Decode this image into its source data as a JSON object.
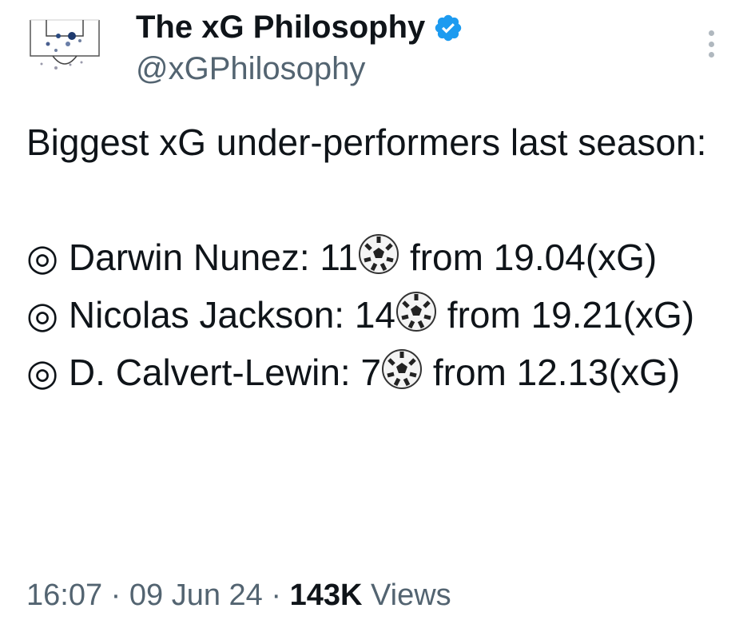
{
  "author": {
    "name": "The xG Philosophy",
    "handle": "@xGPhilosophy",
    "verified": true,
    "verified_color": "#1d9bf0"
  },
  "tweet": {
    "intro": "Biggest xG under-performers last season:",
    "bullet": "◎",
    "ball_icon": "soccer-ball-icon",
    "items": [
      {
        "player": "Darwin Nunez:",
        "goals": "11",
        "xg": "from 19.04(xG)"
      },
      {
        "player": "Nicolas Jackson:",
        "goals": "14",
        "xg": "from 19.21(xG)"
      },
      {
        "player": "D. Calvert-Lewin:",
        "goals": "7",
        "xg": "from 12.13(xG)"
      }
    ]
  },
  "footer": {
    "time": "16:07",
    "date": "09 Jun 24",
    "views_count": "143K",
    "views_label": "Views",
    "separator": "·"
  }
}
